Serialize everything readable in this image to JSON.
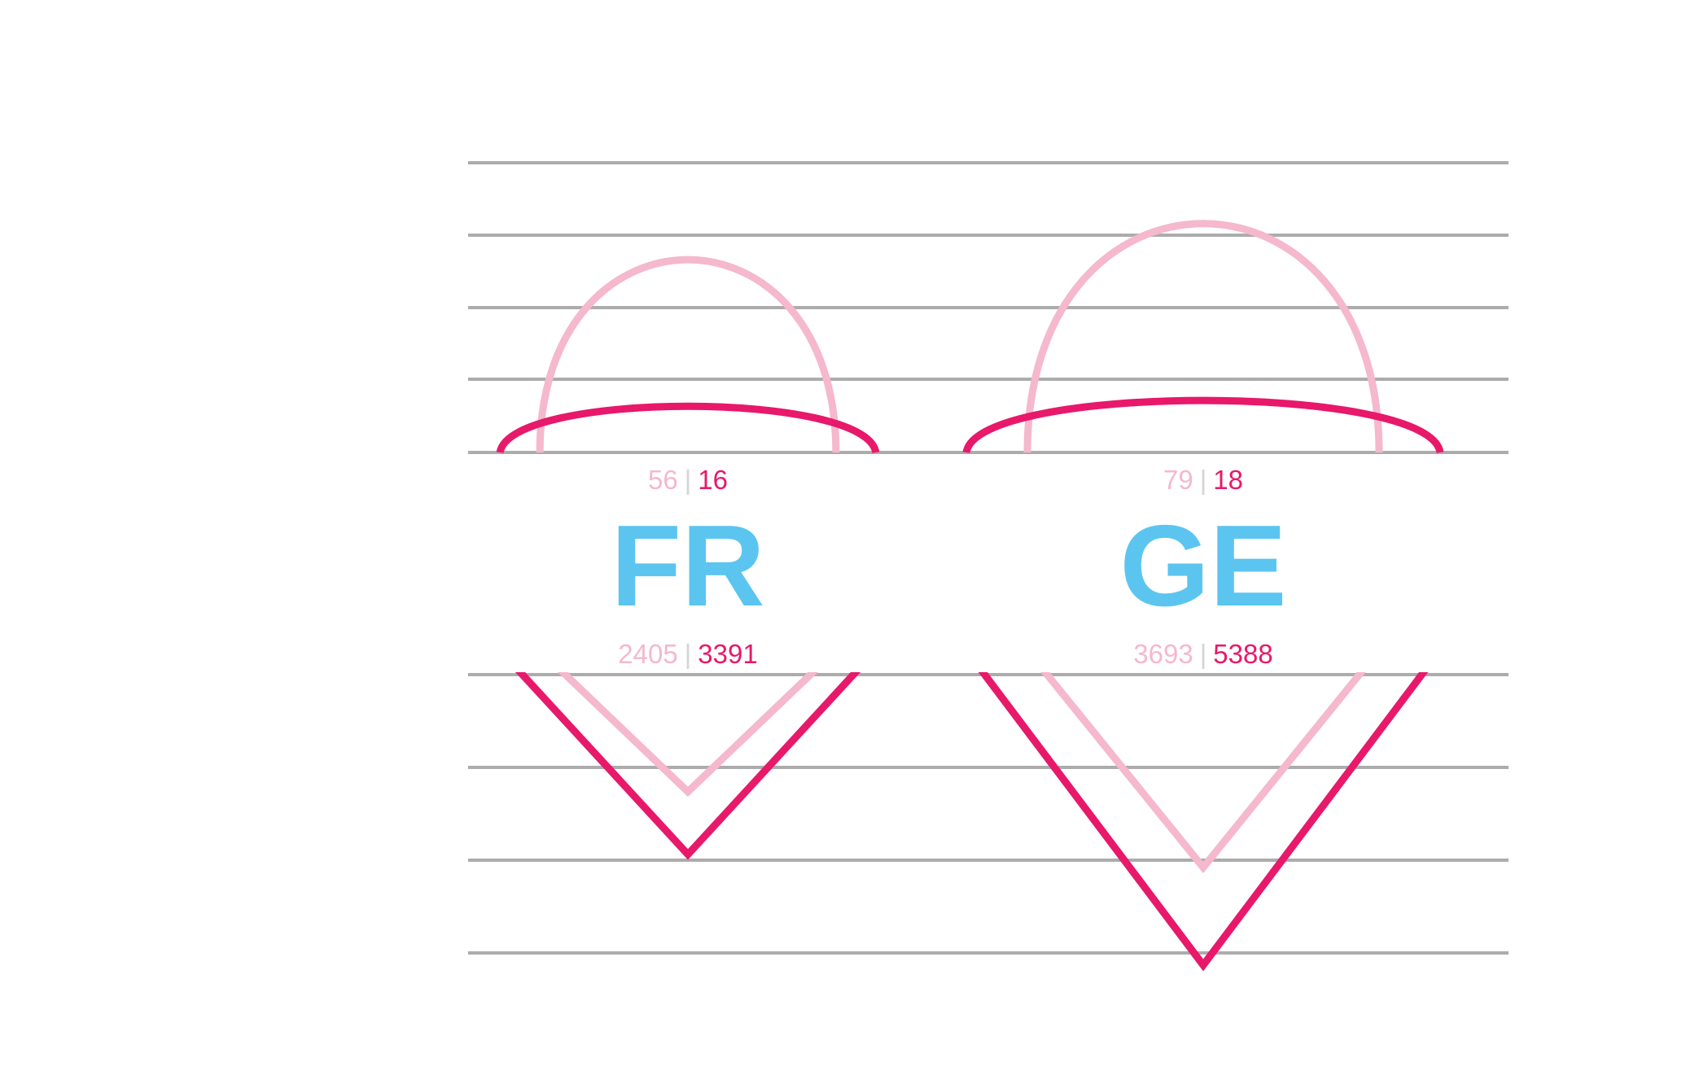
{
  "chart_data": {
    "type": "butterfly-glyph",
    "title": "",
    "legend": "none",
    "grid": true,
    "colors": {
      "series_a": "#f5b8cd",
      "series_b": "#e8186a",
      "label": "#5bc5f0",
      "grid": "#acacac"
    },
    "items": [
      {
        "label": "FR",
        "top": {
          "a": 56,
          "b": 16
        },
        "bottom": {
          "a": 2405,
          "b": 3391
        }
      },
      {
        "label": "GE",
        "top": {
          "a": 79,
          "b": 18
        },
        "bottom": {
          "a": 3693,
          "b": 5388
        }
      }
    ]
  }
}
